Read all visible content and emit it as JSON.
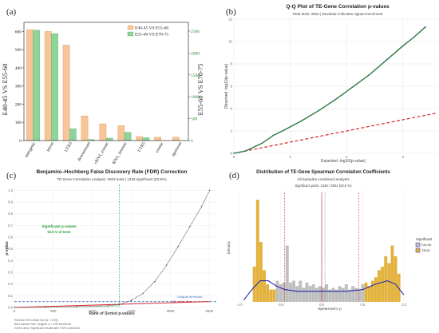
{
  "colors": {
    "orange": "#f7c597",
    "green": "#8ed39a",
    "dark_green": "#2a7a3a",
    "red_dash": "#d8262a",
    "teal": "#2aa39a",
    "gold": "#e3b23c",
    "grey": "#bfbfbf",
    "navy": "#2a2aa8",
    "q_points": "#2f70b0"
  },
  "panel_a": {
    "letter": "(a)",
    "chart_data": {
      "type": "bar",
      "categories": [
        "intergenic",
        "intron",
        "UTR3",
        "downstream",
        "ncRNA_exonic",
        "ncRNA_intronic",
        "UTR5",
        "exonic",
        "upstream"
      ],
      "series": [
        {
          "name": "E40-45 VS E55-60",
          "values": [
            610,
            600,
            525,
            135,
            92,
            82,
            22,
            18,
            18
          ]
        },
        {
          "name": "E55-60 VS E70-75",
          "values": [
            2520,
            2440,
            270,
            22,
            55,
            185,
            65,
            0,
            0
          ]
        }
      ],
      "ylabel_left": "E40-45 VS E55-60",
      "ylabel_right": "E55-60 VS E70-75",
      "ylim_left": [
        0,
        650
      ],
      "ylim_right": [
        0,
        2700
      ],
      "yticks_left": [
        "0",
        "100",
        "200",
        "300",
        "400",
        "500",
        "600"
      ],
      "yticks_right": [
        "0",
        "500",
        "1000",
        "1500",
        "2000",
        "2500"
      ],
      "legend": "top-right"
    }
  },
  "panel_b": {
    "letter": "(b)",
    "chart_data": {
      "type": "scatter",
      "title": "Q-Q Plot of TE-Gene Correlation p-values",
      "subtitle": "Total tests: 2504 | Deviation indicates signal enrichment",
      "xlabel": "Expected -log10(p-value)",
      "ylabel": "Observed -log10(p-value)",
      "xlim": [
        0,
        3.6
      ],
      "ylim": [
        0,
        12
      ],
      "xticks": [
        "0",
        "1",
        "2",
        "3"
      ],
      "yticks": [
        "0",
        "2",
        "4",
        "6",
        "8",
        "10",
        "12"
      ],
      "observed_curve": [
        [
          0,
          0
        ],
        [
          0.2,
          0.2
        ],
        [
          0.5,
          0.9
        ],
        [
          0.7,
          1.6
        ],
        [
          0.9,
          2.1
        ],
        [
          1.2,
          2.9
        ],
        [
          1.5,
          3.8
        ],
        [
          1.8,
          4.8
        ],
        [
          2.1,
          5.9
        ],
        [
          2.4,
          7.0
        ],
        [
          2.7,
          8.3
        ],
        [
          3.0,
          9.6
        ],
        [
          3.2,
          10.4
        ],
        [
          3.4,
          11.3
        ]
      ],
      "reference_line": [
        [
          0,
          0
        ],
        [
          3.6,
          3.6
        ]
      ],
      "grid": true
    }
  },
  "panel_c": {
    "letter": "(c)",
    "chart_data": {
      "type": "line",
      "title": "Benjamini–Hochberg False Discovery Rate (FDR) Correction",
      "subtitle": "TE-Gene Correlation Analysis: 2504 tests | 1346 significant (53.8%)",
      "xlabel": "Rank of Sorted p-values",
      "ylabel": "p-value",
      "xlim": [
        0,
        2600
      ],
      "ylim": [
        0,
        1.05
      ],
      "xticks": [
        "0",
        "500",
        "1000",
        "1500",
        "2000",
        "2500"
      ],
      "yticks": [
        "0.0",
        "0.1",
        "0.2",
        "0.3",
        "0.4",
        "0.5",
        "0.6",
        "0.7",
        "0.8",
        "0.9",
        "1.0"
      ],
      "sorted_pvalues": [
        [
          0,
          0
        ],
        [
          400,
          0.002
        ],
        [
          800,
          0.006
        ],
        [
          1200,
          0.014
        ],
        [
          1346,
          0.025
        ],
        [
          1500,
          0.06
        ],
        [
          1650,
          0.12
        ],
        [
          1800,
          0.22
        ],
        [
          1950,
          0.36
        ],
        [
          2100,
          0.52
        ],
        [
          2250,
          0.69
        ],
        [
          2400,
          0.86
        ],
        [
          2504,
          1.0
        ]
      ],
      "bh_threshold": [
        [
          0,
          0
        ],
        [
          2504,
          0.05
        ]
      ],
      "significant_cutoff_rank": 1346,
      "original_threshold": 0.05,
      "annotations": {
        "significant_title": "Significant p-values",
        "significant_pct": "53.8 % of tests",
        "original_threshold": "Original threshold",
        "bh_line": "BH critical line",
        "notes": [
          "Red line: BH critical line (α = 0.05)",
          "Blue dashed line: Original α = 0.05 threshold",
          "Green area: Significant results after FDR correction"
        ]
      },
      "grid": true
    }
  },
  "panel_d": {
    "letter": "(d)",
    "chart_data": {
      "type": "histogram",
      "title": "Distribution of TE-Gene Spearman Correlation Coefficients",
      "subtitle": "All samples combined analysis",
      "annotation": "Significant pairs: 1346 / 2504 (53.8 %)",
      "xlabel": "Spearman's ρ",
      "ylabel": "Density",
      "xlim": [
        -1.05,
        1.05
      ],
      "ylim": [
        0,
        3.2
      ],
      "xticks": [
        "-1.0",
        "-0.5",
        "0.0",
        "0.5",
        "1.0"
      ],
      "bins": [
        {
          "x": -0.82,
          "density": 1.0,
          "sig": true
        },
        {
          "x": -0.78,
          "density": 2.9,
          "sig": true
        },
        {
          "x": -0.74,
          "density": 1.7,
          "sig": true
        },
        {
          "x": -0.7,
          "density": 0.9,
          "sig": true
        },
        {
          "x": -0.66,
          "density": 0.5,
          "sig": true
        },
        {
          "x": -0.62,
          "density": 0.35,
          "sig": true
        },
        {
          "x": -0.58,
          "density": 0.35,
          "sig": true
        },
        {
          "x": -0.54,
          "density": 0.6,
          "sig": false
        },
        {
          "x": -0.5,
          "density": 0.5,
          "sig": false
        },
        {
          "x": -0.46,
          "density": 0.55,
          "sig": false
        },
        {
          "x": -0.42,
          "density": 1.6,
          "sig": false
        },
        {
          "x": -0.38,
          "density": 0.55,
          "sig": false
        },
        {
          "x": -0.34,
          "density": 0.6,
          "sig": false
        },
        {
          "x": -0.3,
          "density": 0.45,
          "sig": false
        },
        {
          "x": -0.26,
          "density": 0.6,
          "sig": false
        },
        {
          "x": -0.22,
          "density": 0.4,
          "sig": false
        },
        {
          "x": -0.18,
          "density": 0.55,
          "sig": false
        },
        {
          "x": -0.14,
          "density": 0.45,
          "sig": false
        },
        {
          "x": -0.1,
          "density": 0.5,
          "sig": false
        },
        {
          "x": -0.06,
          "density": 0.4,
          "sig": false
        },
        {
          "x": -0.02,
          "density": 0.45,
          "sig": false
        },
        {
          "x": 0.02,
          "density": 0.4,
          "sig": false
        },
        {
          "x": 0.06,
          "density": 0.5,
          "sig": false
        },
        {
          "x": 0.1,
          "density": 0.35,
          "sig": false
        },
        {
          "x": 0.14,
          "density": 0.4,
          "sig": false
        },
        {
          "x": 0.18,
          "density": 0.35,
          "sig": false
        },
        {
          "x": 0.22,
          "density": 0.45,
          "sig": false
        },
        {
          "x": 0.26,
          "density": 0.4,
          "sig": false
        },
        {
          "x": 0.3,
          "density": 0.5,
          "sig": false
        },
        {
          "x": 0.34,
          "density": 0.35,
          "sig": false
        },
        {
          "x": 0.38,
          "density": 0.45,
          "sig": false
        },
        {
          "x": 0.42,
          "density": 0.4,
          "sig": false
        },
        {
          "x": 0.46,
          "density": 0.35,
          "sig": false
        },
        {
          "x": 0.5,
          "density": 0.5,
          "sig": false
        },
        {
          "x": 0.54,
          "density": 0.55,
          "sig": true
        },
        {
          "x": 0.58,
          "density": 0.45,
          "sig": true
        },
        {
          "x": 0.62,
          "density": 0.6,
          "sig": true
        },
        {
          "x": 0.66,
          "density": 0.7,
          "sig": true
        },
        {
          "x": 0.7,
          "density": 0.9,
          "sig": true
        },
        {
          "x": 0.74,
          "density": 1.0,
          "sig": true
        },
        {
          "x": 0.78,
          "density": 1.3,
          "sig": true
        },
        {
          "x": 0.82,
          "density": 1.1,
          "sig": true
        },
        {
          "x": 0.86,
          "density": 1.6,
          "sig": true
        },
        {
          "x": 0.9,
          "density": 1.3,
          "sig": true
        },
        {
          "x": 0.94,
          "density": 0.8,
          "sig": true
        }
      ],
      "density_curve": [
        [
          -0.95,
          0.05
        ],
        [
          -0.85,
          0.35
        ],
        [
          -0.75,
          0.6
        ],
        [
          -0.65,
          0.6
        ],
        [
          -0.55,
          0.45
        ],
        [
          -0.45,
          0.35
        ],
        [
          -0.3,
          0.3
        ],
        [
          -0.1,
          0.3
        ],
        [
          0.1,
          0.3
        ],
        [
          0.3,
          0.3
        ],
        [
          0.5,
          0.35
        ],
        [
          0.65,
          0.5
        ],
        [
          0.8,
          0.6
        ],
        [
          0.9,
          0.5
        ],
        [
          1.0,
          0.2
        ]
      ],
      "vlines_dashed": [
        -0.45,
        0.45
      ],
      "vline_solid": 0.0,
      "vline_mean": 0.04,
      "legend": {
        "title": "Significant",
        "items": [
          "FALSE",
          "TRUE"
        ],
        "position": "right"
      }
    }
  }
}
